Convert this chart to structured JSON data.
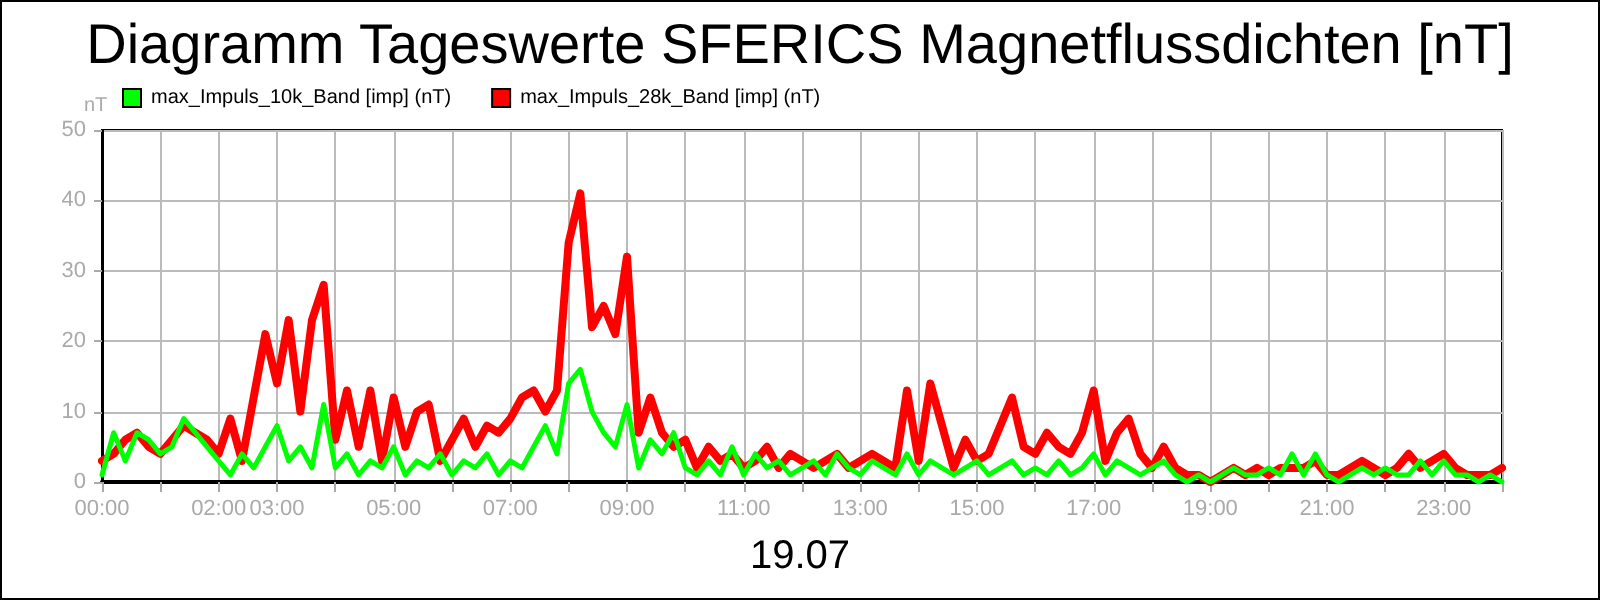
{
  "chart_data": {
    "type": "line",
    "title": "Diagramm Tageswerte SFERICS Magnetflussdichten [nT]",
    "xlabel": "19.07",
    "ylabel": "nT",
    "x": [
      0,
      0.2,
      0.4,
      0.6,
      0.8,
      1,
      1.2,
      1.4,
      1.6,
      1.8,
      2,
      2.2,
      2.4,
      2.6,
      2.8,
      3,
      3.2,
      3.4,
      3.6,
      3.8,
      4,
      4.2,
      4.4,
      4.6,
      4.8,
      5,
      5.2,
      5.4,
      5.6,
      5.8,
      6,
      6.2,
      6.4,
      6.6,
      6.8,
      7,
      7.2,
      7.4,
      7.6,
      7.8,
      8,
      8.2,
      8.4,
      8.6,
      8.8,
      9,
      9.2,
      9.4,
      9.6,
      9.8,
      10,
      10.2,
      10.4,
      10.6,
      10.8,
      11,
      11.2,
      11.4,
      11.6,
      11.8,
      12,
      12.2,
      12.4,
      12.6,
      12.8,
      13,
      13.2,
      13.4,
      13.6,
      13.8,
      14,
      14.2,
      14.4,
      14.6,
      14.8,
      15,
      15.2,
      15.4,
      15.6,
      15.8,
      16,
      16.2,
      16.4,
      16.6,
      16.8,
      17,
      17.2,
      17.4,
      17.6,
      17.8,
      18,
      18.2,
      18.4,
      18.6,
      18.8,
      19,
      19.2,
      19.4,
      19.6,
      19.8,
      20,
      20.2,
      20.4,
      20.6,
      20.8,
      21,
      21.2,
      21.4,
      21.6,
      21.8,
      22,
      22.2,
      22.4,
      22.6,
      22.8,
      23,
      23.2,
      23.4,
      23.6,
      23.8,
      24
    ],
    "series": [
      {
        "name": "max_Impuls_10k_Band [imp] (nT)",
        "color": "#00ff00",
        "values": [
          1,
          7,
          3,
          7,
          6,
          4,
          5,
          9,
          7,
          5,
          3,
          1,
          4,
          2,
          5,
          8,
          3,
          5,
          2,
          11,
          2,
          4,
          1,
          3,
          2,
          5,
          1,
          3,
          2,
          4,
          1,
          3,
          2,
          4,
          1,
          3,
          2,
          5,
          8,
          4,
          14,
          16,
          10,
          7,
          5,
          11,
          2,
          6,
          4,
          7,
          2,
          1,
          3,
          1,
          5,
          1,
          4,
          2,
          3,
          1,
          2,
          3,
          1,
          4,
          2,
          1,
          3,
          2,
          1,
          4,
          1,
          3,
          2,
          1,
          2,
          3,
          1,
          2,
          3,
          1,
          2,
          1,
          3,
          1,
          2,
          4,
          1,
          3,
          2,
          1,
          2,
          3,
          1,
          0,
          1,
          0,
          1,
          2,
          1,
          1,
          2,
          1,
          4,
          1,
          4,
          1,
          0,
          1,
          2,
          1,
          2,
          1,
          1,
          3,
          1,
          3,
          1,
          1,
          0,
          1,
          0
        ]
      },
      {
        "name": "max_Impuls_28k_Band [imp] (nT)",
        "color": "#ff0000",
        "values": [
          3,
          4,
          6,
          7,
          5,
          4,
          6,
          8,
          7,
          6,
          4,
          9,
          3,
          12,
          21,
          14,
          23,
          10,
          23,
          28,
          6,
          13,
          5,
          13,
          3,
          12,
          5,
          10,
          11,
          3,
          6,
          9,
          5,
          8,
          7,
          9,
          12,
          13,
          10,
          13,
          34,
          41,
          22,
          25,
          21,
          32,
          7,
          12,
          7,
          5,
          6,
          2,
          5,
          3,
          4,
          2,
          3,
          5,
          2,
          4,
          3,
          2,
          3,
          4,
          2,
          3,
          4,
          3,
          2,
          13,
          3,
          14,
          8,
          2,
          6,
          3,
          4,
          8,
          12,
          5,
          4,
          7,
          5,
          4,
          7,
          13,
          3,
          7,
          9,
          4,
          2,
          5,
          2,
          1,
          1,
          0,
          1,
          2,
          1,
          2,
          1,
          2,
          2,
          2,
          3,
          1,
          1,
          2,
          3,
          2,
          1,
          2,
          4,
          2,
          3,
          4,
          2,
          1,
          1,
          1,
          2
        ]
      }
    ],
    "xlim": [
      0,
      24
    ],
    "ylim": [
      0,
      50
    ],
    "yticks": [
      0,
      10,
      20,
      30,
      40,
      50
    ],
    "xticks": [
      {
        "value": 0,
        "label": "00:00"
      },
      {
        "value": 1,
        "label": null
      },
      {
        "value": 2,
        "label": "02:00"
      },
      {
        "value": 3,
        "label": "03:00"
      },
      {
        "value": 4,
        "label": null
      },
      {
        "value": 5,
        "label": "05:00"
      },
      {
        "value": 6,
        "label": null
      },
      {
        "value": 7,
        "label": "07:00"
      },
      {
        "value": 8,
        "label": null
      },
      {
        "value": 9,
        "label": "09:00"
      },
      {
        "value": 10,
        "label": null
      },
      {
        "value": 11,
        "label": "11:00"
      },
      {
        "value": 12,
        "label": null
      },
      {
        "value": 13,
        "label": "13:00"
      },
      {
        "value": 14,
        "label": null
      },
      {
        "value": 15,
        "label": "15:00"
      },
      {
        "value": 16,
        "label": null
      },
      {
        "value": 17,
        "label": "17:00"
      },
      {
        "value": 18,
        "label": null
      },
      {
        "value": 19,
        "label": "19:00"
      },
      {
        "value": 20,
        "label": null
      },
      {
        "value": 21,
        "label": "21:00"
      },
      {
        "value": 22,
        "label": null
      },
      {
        "value": 23,
        "label": "23:00"
      },
      {
        "value": 24,
        "label": null
      }
    ],
    "grid": true,
    "legend": "top left",
    "marker": "none",
    "line_style": "solid"
  }
}
